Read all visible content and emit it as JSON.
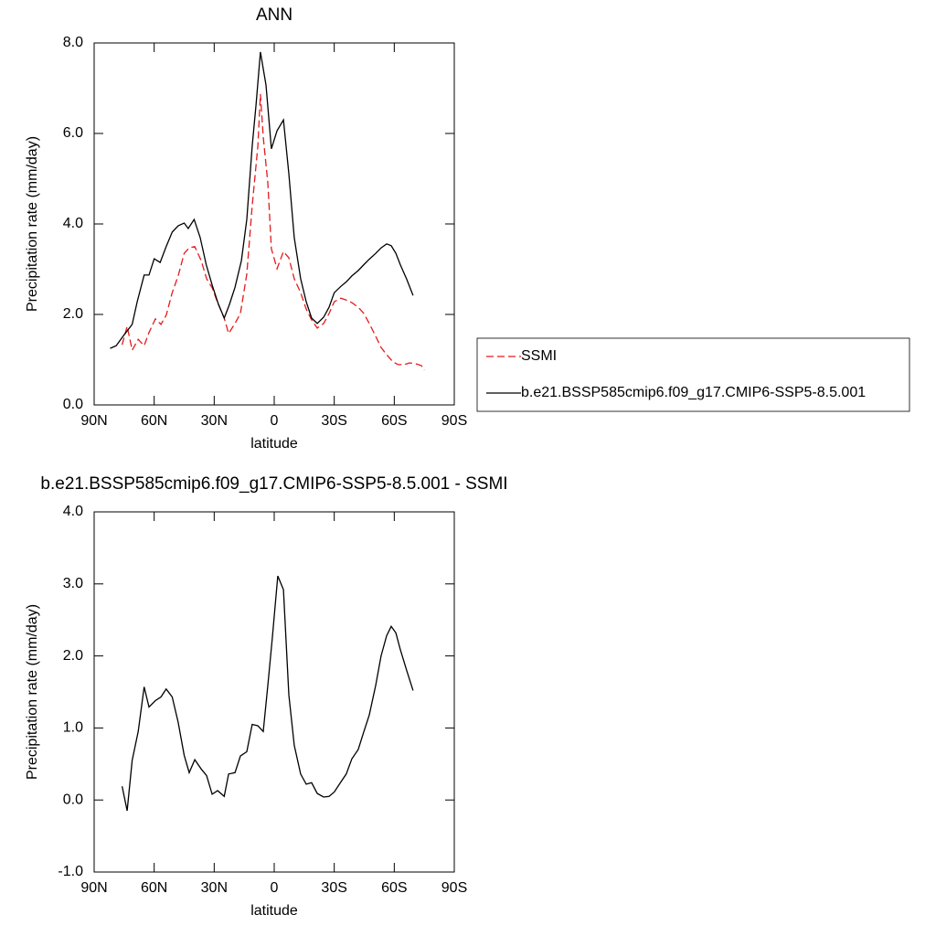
{
  "chart_data": [
    {
      "type": "line",
      "title": "ANN",
      "xlabel": "latitude",
      "ylabel": "Precipitation rate (mm/day)",
      "xlim": [
        90,
        -90
      ],
      "xticks": [
        {
          "value": 90,
          "label": "90N"
        },
        {
          "value": 60,
          "label": "60N"
        },
        {
          "value": 30,
          "label": "30N"
        },
        0,
        {
          "value": -30,
          "label": "30S"
        },
        {
          "value": -60,
          "label": "60S"
        },
        {
          "value": -90,
          "label": "90S"
        }
      ],
      "ylim": [
        0,
        8
      ],
      "yticks": [
        {
          "value": 0,
          "label": "0.0"
        },
        {
          "value": 2,
          "label": "2.0"
        },
        {
          "value": 4,
          "label": "4.0"
        },
        {
          "value": 6,
          "label": "6.0"
        },
        {
          "value": 8,
          "label": "8.0"
        }
      ],
      "legend": "right",
      "series": [
        {
          "name": "SSMI",
          "color": "#e41a1c",
          "dash": true,
          "x": [
            76,
            73.5,
            71,
            68,
            65,
            62.6,
            59.4,
            56.6,
            54,
            51,
            48,
            45,
            42.5,
            39.7,
            36.5,
            33.8,
            31,
            28.3,
            25,
            22.8,
            19.6,
            16.9,
            13.7,
            11,
            8.2,
            6.9,
            5.5,
            3.2,
            1.4,
            -1.4,
            -4.6,
            -7.3,
            -10,
            -13.2,
            -16,
            -18.7,
            -21.5,
            -24.7,
            -27.4,
            -30,
            -33.3,
            -36,
            -38.8,
            -42,
            -44.8,
            -47.5,
            -50.7,
            -53.4,
            -56.2,
            -59.4,
            -62,
            -65,
            -67.6,
            -70.8,
            -73.5,
            -75
          ],
          "values": [
            1.33,
            1.74,
            1.21,
            1.45,
            1.31,
            1.6,
            1.9,
            1.78,
            1.98,
            2.48,
            2.85,
            3.35,
            3.47,
            3.5,
            3.19,
            2.79,
            2.59,
            2.26,
            1.92,
            1.58,
            1.8,
            2.02,
            2.89,
            4.4,
            5.72,
            6.87,
            5.92,
            4.91,
            3.45,
            3.01,
            3.39,
            3.25,
            2.79,
            2.48,
            2.12,
            1.88,
            1.7,
            1.8,
            2.02,
            2.28,
            2.36,
            2.32,
            2.26,
            2.16,
            2.02,
            1.8,
            1.52,
            1.27,
            1.11,
            0.95,
            0.89,
            0.89,
            0.93,
            0.91,
            0.87,
            0.77
          ]
        },
        {
          "name": "b.e21.BSSP585cmip6.f09_g17.CMIP6-SSP5-8.5.001",
          "color": "#000000",
          "dash": false,
          "x": [
            82,
            79,
            75,
            71,
            68.5,
            65,
            62.6,
            60,
            57,
            54,
            51,
            48,
            45,
            43,
            40,
            37,
            34,
            31,
            28,
            25,
            22.4,
            19.6,
            16.4,
            13.7,
            11,
            9.1,
            6.9,
            4.1,
            1.4,
            -1.4,
            -4.6,
            -7.3,
            -10,
            -13.2,
            -16,
            -18.7,
            -21.5,
            -24.7,
            -27.4,
            -30,
            -33.3,
            -36,
            -38.8,
            -42,
            -44.8,
            -47.5,
            -50.7,
            -53.4,
            -56.2,
            -58.5,
            -60.8,
            -63,
            -66.2,
            -69.4
          ],
          "values": [
            1.25,
            1.31,
            1.55,
            1.78,
            2.28,
            2.87,
            2.87,
            3.23,
            3.15,
            3.5,
            3.82,
            3.96,
            4.02,
            3.9,
            4.1,
            3.7,
            3.1,
            2.65,
            2.24,
            1.92,
            2.22,
            2.6,
            3.19,
            4.1,
            5.72,
            6.63,
            7.8,
            7.07,
            5.66,
            6.06,
            6.3,
            5.11,
            3.7,
            2.79,
            2.28,
            1.92,
            1.8,
            1.94,
            2.16,
            2.48,
            2.62,
            2.72,
            2.85,
            2.97,
            3.1,
            3.22,
            3.35,
            3.47,
            3.56,
            3.52,
            3.35,
            3.1,
            2.78,
            2.42
          ]
        }
      ]
    },
    {
      "type": "line",
      "title": "b.e21.BSSP585cmip6.f09_g17.CMIP6-SSP5-8.5.001 - SSMI",
      "xlabel": "latitude",
      "ylabel": "Precipitation rate (mm/day)",
      "xlim": [
        90,
        -90
      ],
      "xticks": [
        {
          "value": 90,
          "label": "90N"
        },
        {
          "value": 60,
          "label": "60N"
        },
        {
          "value": 30,
          "label": "30N"
        },
        0,
        {
          "value": -30,
          "label": "30S"
        },
        {
          "value": -60,
          "label": "60S"
        },
        {
          "value": -90,
          "label": "90S"
        }
      ],
      "ylim": [
        -1,
        4
      ],
      "yticks": [
        {
          "value": -1,
          "label": "-1.0"
        },
        {
          "value": 0,
          "label": "0.0"
        },
        {
          "value": 1,
          "label": "1.0"
        },
        {
          "value": 2,
          "label": "2.0"
        },
        {
          "value": 3,
          "label": "3.0"
        },
        {
          "value": 4,
          "label": "4.0"
        }
      ],
      "series": [
        {
          "color": "#000000",
          "dash": false,
          "x": [
            76,
            73.5,
            71,
            68,
            65,
            62.6,
            59.4,
            56.6,
            54,
            51,
            48,
            45,
            42.5,
            39.7,
            36.5,
            33.8,
            31,
            28.3,
            25,
            22.8,
            19.6,
            16.9,
            13.7,
            11,
            8.2,
            5.5,
            3.2,
            0.9,
            -1.8,
            -4.6,
            -7.3,
            -10,
            -13.2,
            -16,
            -18.7,
            -21.5,
            -24.7,
            -27.4,
            -30,
            -33.3,
            -36,
            -38.8,
            -42,
            -44.8,
            -47.5,
            -50.7,
            -53.4,
            -56.2,
            -58.5,
            -60.8,
            -63,
            -66.2,
            -69.4
          ],
          "values": [
            0.19,
            -0.15,
            0.55,
            0.95,
            1.57,
            1.29,
            1.38,
            1.43,
            1.54,
            1.43,
            1.08,
            0.62,
            0.38,
            0.56,
            0.43,
            0.34,
            0.08,
            0.13,
            0.05,
            0.36,
            0.38,
            0.61,
            0.67,
            1.05,
            1.03,
            0.95,
            1.59,
            2.26,
            3.11,
            2.92,
            1.46,
            0.76,
            0.36,
            0.22,
            0.24,
            0.09,
            0.04,
            0.05,
            0.11,
            0.25,
            0.36,
            0.57,
            0.7,
            0.95,
            1.18,
            1.59,
            2.0,
            2.28,
            2.41,
            2.32,
            2.09,
            1.8,
            1.52
          ]
        }
      ]
    }
  ]
}
